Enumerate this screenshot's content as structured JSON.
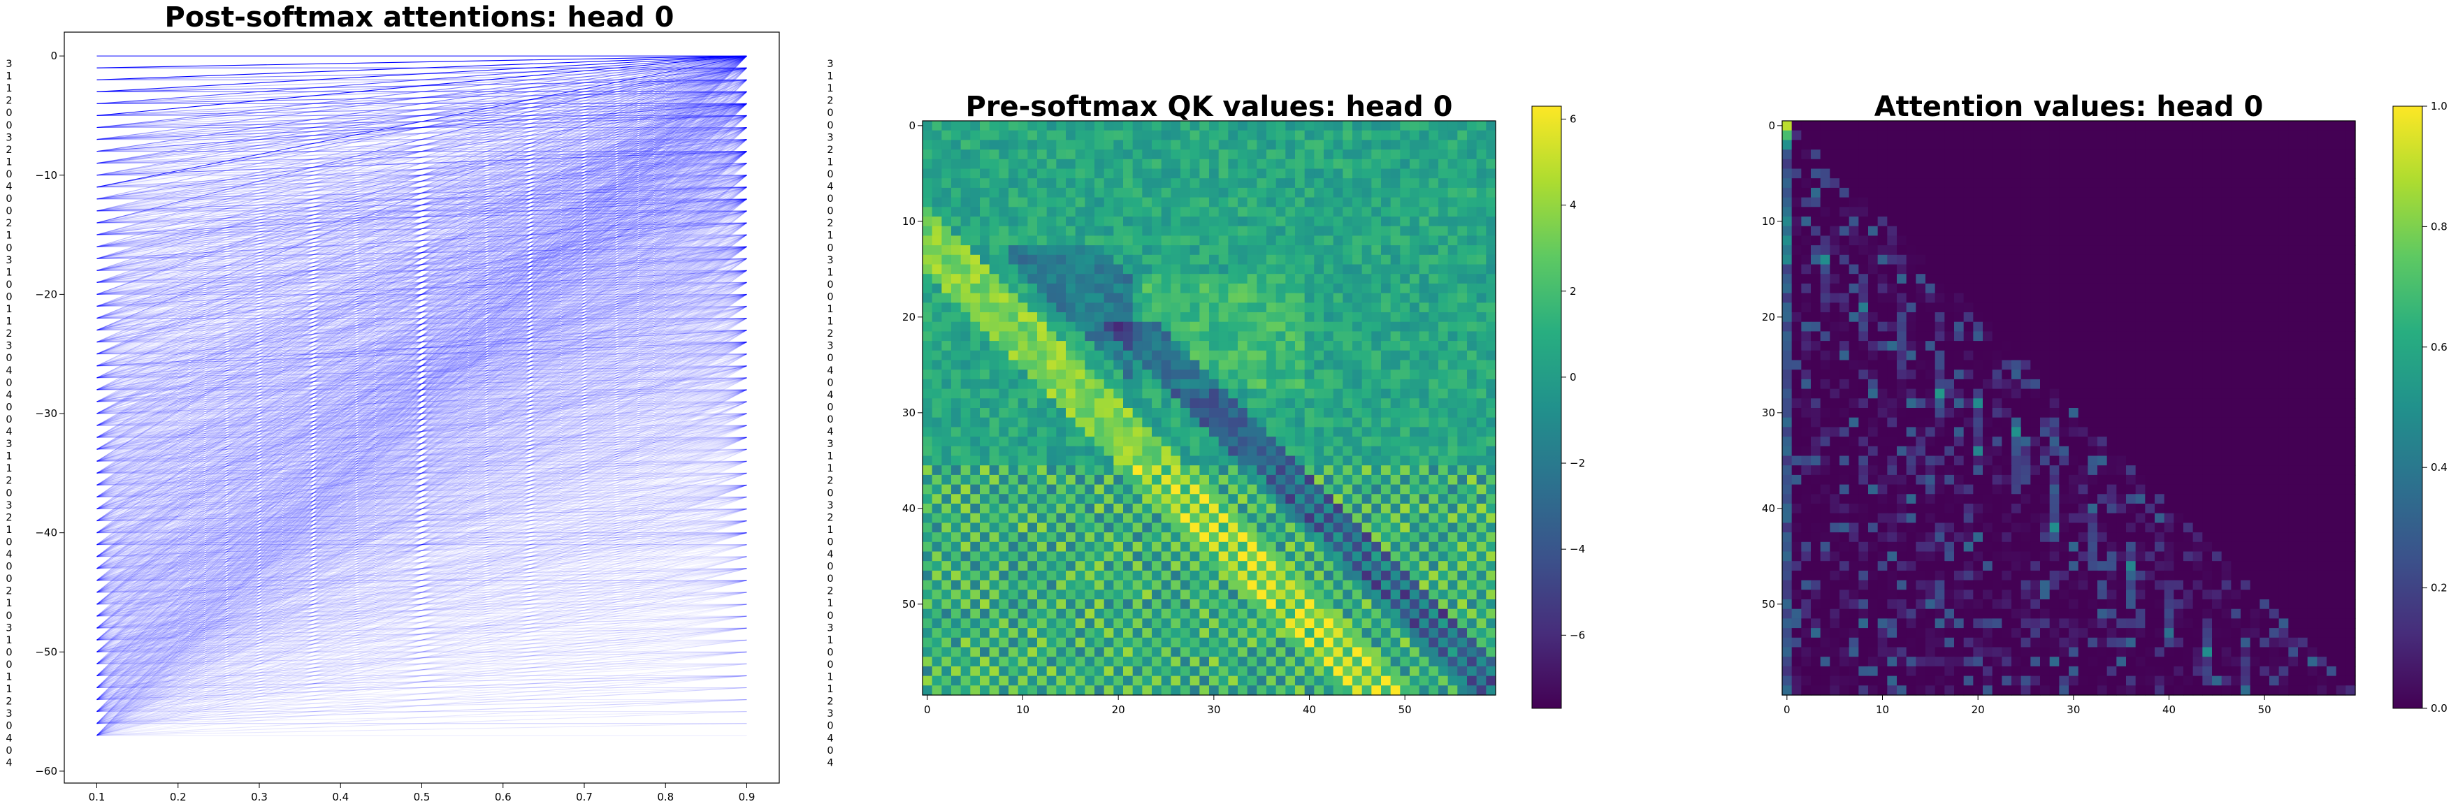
{
  "chart_data": [
    {
      "type": "line",
      "title": "Post-softmax attentions: head 0",
      "xlim": [
        0.06,
        0.94
      ],
      "ylim": [
        -61,
        2
      ],
      "x_ticks": [
        0.1,
        0.2,
        0.3,
        0.4,
        0.5,
        0.6,
        0.7,
        0.8,
        0.9
      ],
      "y_ticks": [
        0,
        -10,
        -20,
        -30,
        -40,
        -50,
        -60
      ],
      "x_left": 0.1,
      "x_right": 0.9,
      "line_color": "#0000ff",
      "left_tokens": [
        "3",
        "1",
        "1",
        "2",
        "0",
        "0",
        "3",
        "2",
        "1",
        "0",
        "4",
        "0",
        "0",
        "2",
        "1",
        "0",
        "3",
        "1",
        "0",
        "0",
        "1",
        "1",
        "2",
        "3",
        "0",
        "4",
        "0",
        "4",
        "0",
        "0",
        "4",
        "3",
        "1",
        "1",
        "2",
        "0",
        "3",
        "2",
        "1",
        "0",
        "4",
        "0",
        "0",
        "2",
        "1",
        "0",
        "3",
        "1",
        "0",
        "0",
        "1",
        "1",
        "2",
        "3",
        "0",
        "4",
        "0",
        "4"
      ],
      "right_tokens": [
        "3",
        "1",
        "1",
        "2",
        "0",
        "0",
        "3",
        "2",
        "1",
        "0",
        "4",
        "0",
        "0",
        "2",
        "1",
        "0",
        "3",
        "1",
        "0",
        "0",
        "1",
        "1",
        "2",
        "3",
        "0",
        "4",
        "0",
        "4",
        "0",
        "0",
        "4",
        "3",
        "1",
        "1",
        "2",
        "0",
        "3",
        "2",
        "1",
        "0",
        "4",
        "0",
        "0",
        "2",
        "1",
        "0",
        "3",
        "1",
        "0",
        "0",
        "1",
        "1",
        "2",
        "3",
        "0",
        "4",
        "0",
        "4"
      ]
    },
    {
      "type": "heatmap",
      "title": "Pre-softmax QK values: head 0",
      "size": 60,
      "x_ticks": [
        0,
        10,
        20,
        30,
        40,
        50
      ],
      "y_ticks": [
        0,
        10,
        20,
        30,
        40,
        50
      ],
      "colorbar_ticks": [
        6,
        4,
        2,
        0,
        -2,
        -4,
        -6
      ],
      "colorbar_labels": [
        "6",
        "4",
        "2",
        "0",
        "−2",
        "−4",
        "−6"
      ],
      "vmin": -7.7,
      "vmax": 6.3,
      "colormap": "viridis"
    },
    {
      "type": "heatmap",
      "title": "Attention values: head 0",
      "size": 60,
      "x_ticks": [
        0,
        10,
        20,
        30,
        40,
        50
      ],
      "y_ticks": [
        0,
        10,
        20,
        30,
        40,
        50
      ],
      "colorbar_ticks": [
        1.0,
        0.8,
        0.6,
        0.4,
        0.2,
        0.0
      ],
      "colorbar_labels": [
        "1.0",
        "0.8",
        "0.6",
        "0.4",
        "0.2",
        "0.0"
      ],
      "vmin": 0.0,
      "vmax": 1.0,
      "colormap": "viridis"
    }
  ]
}
